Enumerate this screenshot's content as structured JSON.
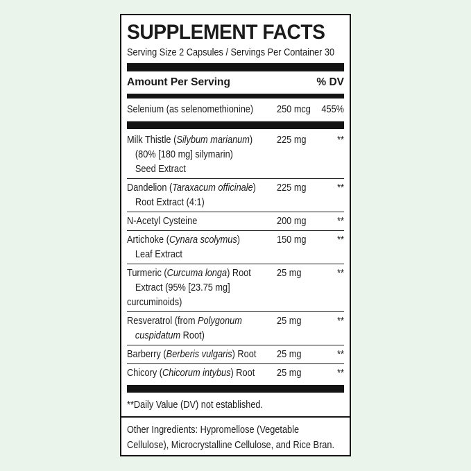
{
  "colors": {
    "page_background": "#eaf4ea",
    "panel_background": "#ffffff",
    "ink": "#161616"
  },
  "panel": {
    "title": "SUPPLEMENT FACTS",
    "serving_info": "Serving Size 2 Capsules / Servings Per Container 30",
    "columns": {
      "amount_header": "Amount Per Serving",
      "dv_header": "% DV"
    },
    "rows": [
      {
        "name_lines": [
          {
            "indent": false,
            "segments": [
              {
                "text": "Selenium (as selenomethionine)",
                "italic": false
              }
            ]
          }
        ],
        "amount": "250 mcg",
        "dv": "455%",
        "divider_after": "thick"
      },
      {
        "name_lines": [
          {
            "indent": false,
            "segments": [
              {
                "text": "Milk Thistle (",
                "italic": false
              },
              {
                "text": "Silybum marianum",
                "italic": true
              },
              {
                "text": ")",
                "italic": false
              }
            ]
          },
          {
            "indent": true,
            "segments": [
              {
                "text": "(80% [180 mg] silymarin)",
                "italic": false
              }
            ]
          },
          {
            "indent": true,
            "segments": [
              {
                "text": "Seed Extract",
                "italic": false
              }
            ]
          }
        ],
        "amount": "225 mg",
        "dv": "**",
        "divider_after": "thin"
      },
      {
        "name_lines": [
          {
            "indent": false,
            "segments": [
              {
                "text": "Dandelion (",
                "italic": false
              },
              {
                "text": "Taraxacum officinale",
                "italic": true
              },
              {
                "text": ")",
                "italic": false
              }
            ]
          },
          {
            "indent": true,
            "segments": [
              {
                "text": "Root Extract (4:1)",
                "italic": false
              }
            ]
          }
        ],
        "amount": "225 mg",
        "dv": "**",
        "divider_after": "thin"
      },
      {
        "name_lines": [
          {
            "indent": false,
            "segments": [
              {
                "text": "N-Acetyl Cysteine",
                "italic": false
              }
            ]
          }
        ],
        "amount": "200 mg",
        "dv": "**",
        "divider_after": "thin"
      },
      {
        "name_lines": [
          {
            "indent": false,
            "segments": [
              {
                "text": "Artichoke (",
                "italic": false
              },
              {
                "text": "Cynara scolymus",
                "italic": true
              },
              {
                "text": ")",
                "italic": false
              }
            ]
          },
          {
            "indent": true,
            "segments": [
              {
                "text": "Leaf Extract",
                "italic": false
              }
            ]
          }
        ],
        "amount": "150 mg",
        "dv": "**",
        "divider_after": "thin"
      },
      {
        "name_lines": [
          {
            "indent": false,
            "segments": [
              {
                "text": "Turmeric (",
                "italic": false
              },
              {
                "text": "Curcuma longa",
                "italic": true
              },
              {
                "text": ") Root",
                "italic": false
              }
            ]
          },
          {
            "indent": true,
            "segments": [
              {
                "text": "Extract (95% [23.75 mg]",
                "italic": false
              }
            ]
          },
          {
            "indent": false,
            "segments": [
              {
                "text": "curcuminoids)",
                "italic": false
              }
            ]
          }
        ],
        "amount": "25 mg",
        "dv": "**",
        "divider_after": "thin"
      },
      {
        "name_lines": [
          {
            "indent": false,
            "segments": [
              {
                "text": "Resveratrol (from ",
                "italic": false
              },
              {
                "text": "Polygonum",
                "italic": true
              }
            ]
          },
          {
            "indent": true,
            "segments": [
              {
                "text": "cuspidatum",
                "italic": true
              },
              {
                "text": " Root)",
                "italic": false
              }
            ]
          }
        ],
        "amount": "25 mg",
        "dv": "**",
        "divider_after": "thin"
      },
      {
        "name_lines": [
          {
            "indent": false,
            "segments": [
              {
                "text": "Barberry (",
                "italic": false
              },
              {
                "text": "Berberis vulgaris",
                "italic": true
              },
              {
                "text": ") Root",
                "italic": false
              }
            ]
          }
        ],
        "amount": "25 mg",
        "dv": "**",
        "divider_after": "thin"
      },
      {
        "name_lines": [
          {
            "indent": false,
            "segments": [
              {
                "text": "Chicory (",
                "italic": false
              },
              {
                "text": "Chicorum intybus",
                "italic": true
              },
              {
                "text": ") Root",
                "italic": false
              }
            ]
          }
        ],
        "amount": "25 mg",
        "dv": "**",
        "divider_after": "thick"
      }
    ],
    "footnote": "**Daily Value (DV) not established.",
    "other_ingredients_lines": [
      "Other Ingredients: Hypromellose (Vegetable",
      "Cellulose), Microcrystalline Cellulose, and Rice Bran."
    ]
  }
}
